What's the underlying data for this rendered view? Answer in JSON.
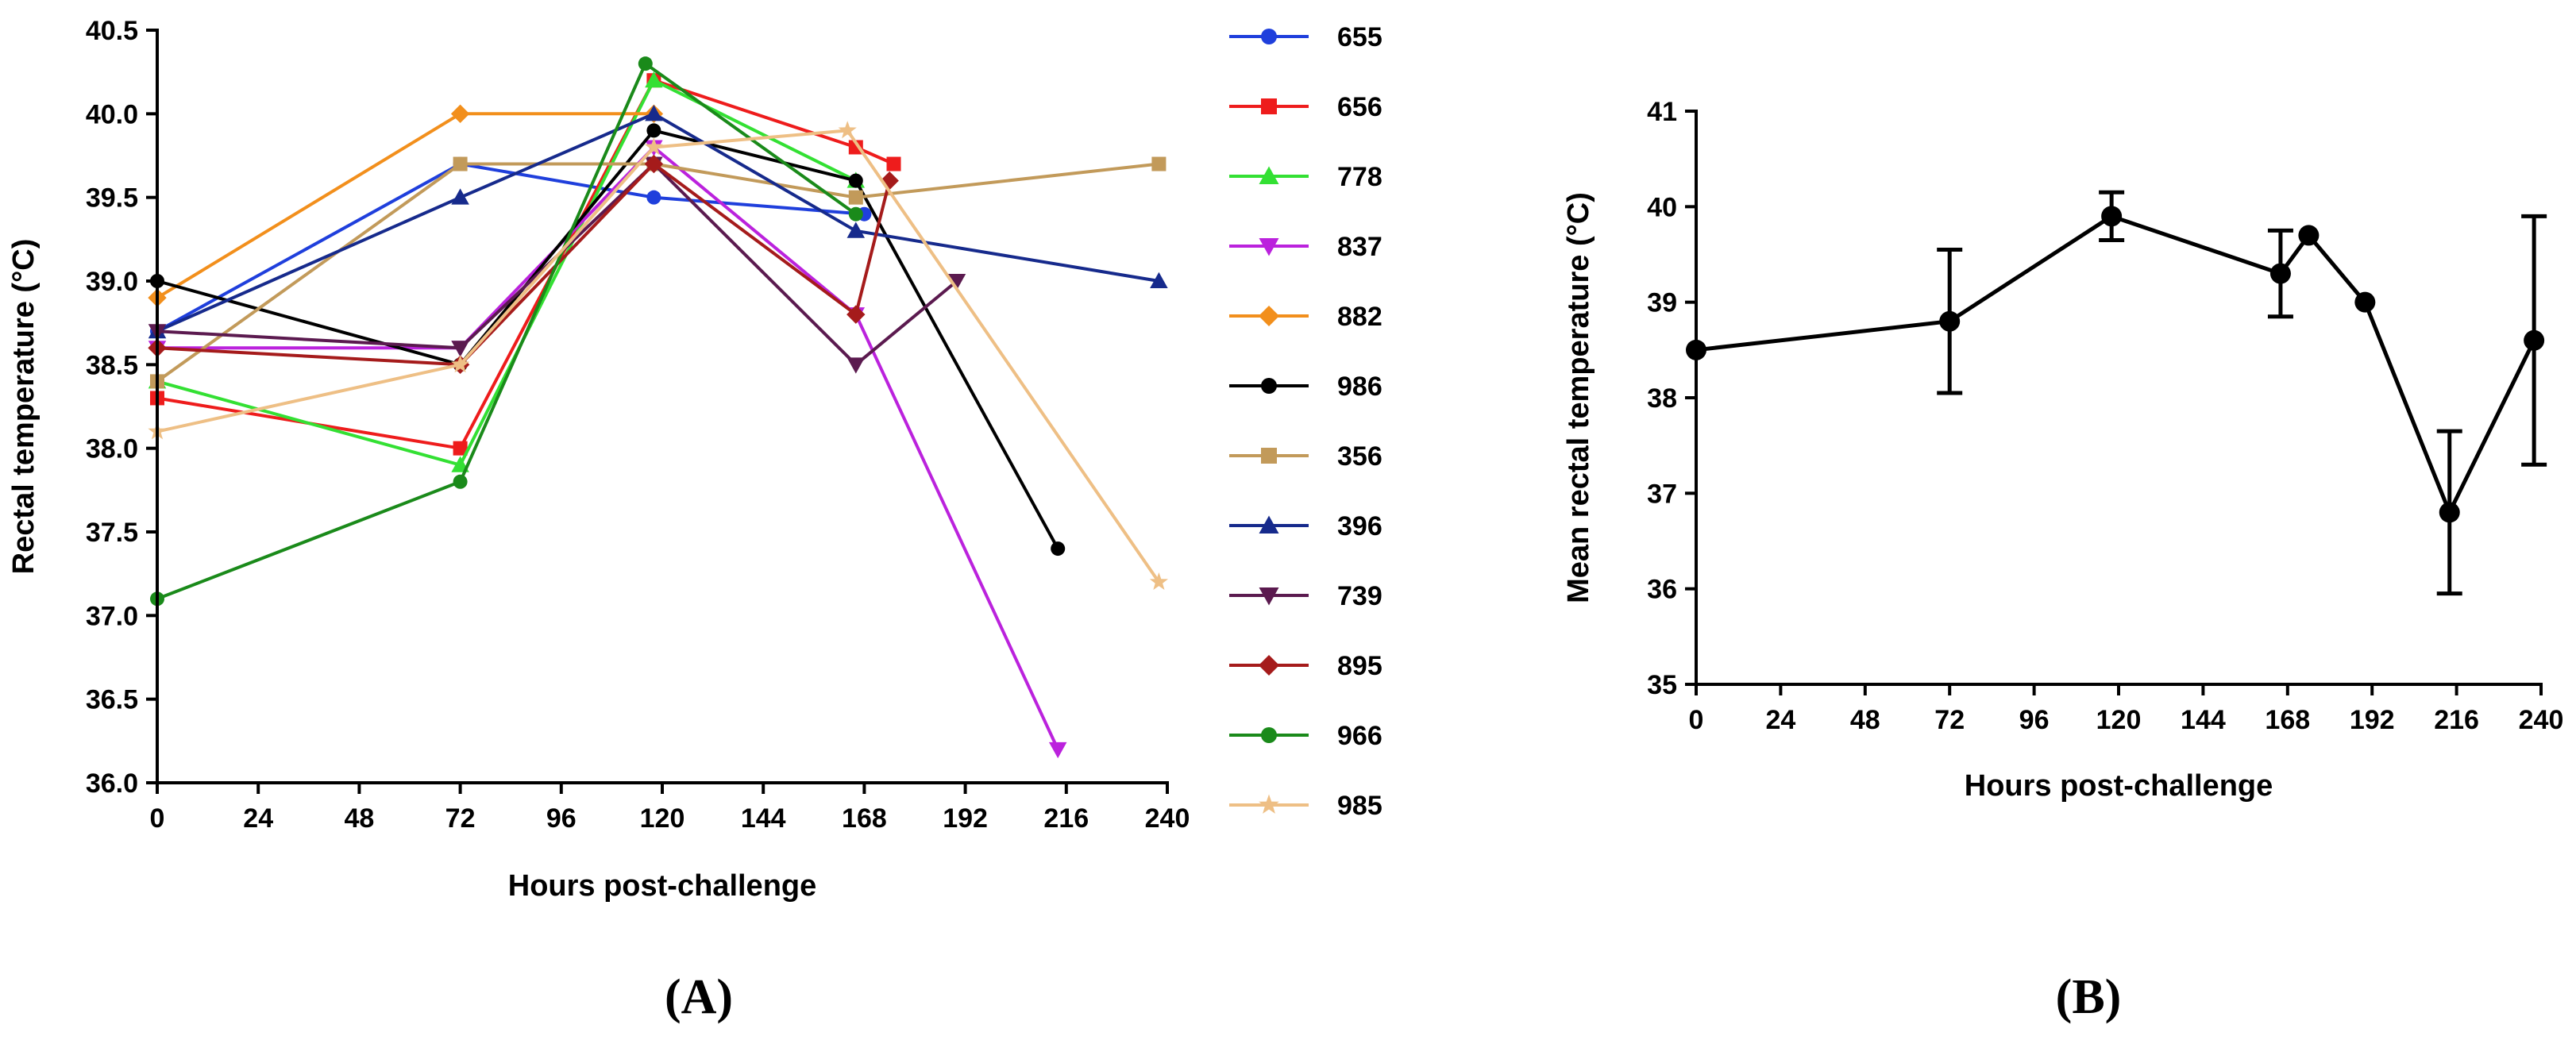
{
  "chart_data": [
    {
      "panel_label": "(A)",
      "type": "line",
      "title": "",
      "xlabel": "Hours post-challenge",
      "ylabel": "Rectal temperature (°C)",
      "xlim": [
        0,
        240
      ],
      "ylim": [
        36.0,
        40.5
      ],
      "xticks": [
        "0",
        "24",
        "48",
        "72",
        "96",
        "120",
        "144",
        "168",
        "192",
        "216",
        "240"
      ],
      "yticks": [
        "36.0",
        "36.5",
        "37.0",
        "37.5",
        "38.0",
        "38.5",
        "39.0",
        "39.5",
        "40.0",
        "40.5"
      ],
      "grid": false,
      "legend_position": "right",
      "series": [
        {
          "name": "655",
          "color": "#1f3fdc",
          "marker": "circle",
          "x": [
            0,
            72,
            118,
            168
          ],
          "y": [
            38.7,
            39.7,
            39.5,
            39.4
          ]
        },
        {
          "name": "656",
          "color": "#ee1c1c",
          "marker": "square",
          "x": [
            0,
            72,
            118,
            166,
            175
          ],
          "y": [
            38.3,
            38.0,
            40.2,
            39.8,
            39.7
          ]
        },
        {
          "name": "778",
          "color": "#33e033",
          "marker": "triangle-up",
          "x": [
            0,
            72,
            118,
            166
          ],
          "y": [
            38.4,
            37.9,
            40.2,
            39.6
          ]
        },
        {
          "name": "837",
          "color": "#bb22dd",
          "marker": "triangle-down",
          "x": [
            0,
            72,
            118,
            166,
            214
          ],
          "y": [
            38.6,
            38.6,
            39.8,
            38.8,
            36.2
          ]
        },
        {
          "name": "882",
          "color": "#f28f1c",
          "marker": "diamond",
          "x": [
            0,
            72,
            118
          ],
          "y": [
            38.9,
            40.0,
            40.0
          ]
        },
        {
          "name": "986",
          "color": "#000000",
          "marker": "circle",
          "x": [
            0,
            72,
            118,
            166,
            214
          ],
          "y": [
            39.0,
            38.5,
            39.9,
            39.6,
            37.4
          ]
        },
        {
          "name": "356",
          "color": "#c29a5a",
          "marker": "square",
          "x": [
            0,
            72,
            118,
            166,
            238
          ],
          "y": [
            38.4,
            39.7,
            39.7,
            39.5,
            39.7
          ]
        },
        {
          "name": "396",
          "color": "#162a8c",
          "marker": "triangle-up",
          "x": [
            0,
            72,
            118,
            166,
            238
          ],
          "y": [
            38.7,
            39.5,
            40.0,
            39.3,
            39.0
          ]
        },
        {
          "name": "739",
          "color": "#5b1a4f",
          "marker": "triangle-down",
          "x": [
            0,
            72,
            118,
            166,
            190
          ],
          "y": [
            38.7,
            38.6,
            39.7,
            38.5,
            39.0
          ]
        },
        {
          "name": "895",
          "color": "#a51b1b",
          "marker": "diamond",
          "x": [
            0,
            72,
            118,
            166,
            174
          ],
          "y": [
            38.6,
            38.5,
            39.7,
            38.8,
            39.6
          ]
        },
        {
          "name": "966",
          "color": "#1a8a1a",
          "marker": "circle",
          "x": [
            0,
            72,
            116,
            166
          ],
          "y": [
            37.1,
            37.8,
            40.3,
            39.4
          ]
        },
        {
          "name": "985",
          "color": "#eebf85",
          "marker": "star",
          "x": [
            0,
            72,
            118,
            164,
            238
          ],
          "y": [
            38.1,
            38.5,
            39.8,
            39.9,
            37.2
          ]
        }
      ]
    },
    {
      "panel_label": "(B)",
      "type": "line",
      "title": "",
      "xlabel": "Hours post-challenge",
      "ylabel": "Mean rectal temperature (°C)",
      "xlim": [
        0,
        240
      ],
      "ylim": [
        35,
        41
      ],
      "xticks": [
        "0",
        "24",
        "48",
        "72",
        "96",
        "120",
        "144",
        "168",
        "192",
        "216",
        "240"
      ],
      "yticks": [
        "35",
        "36",
        "37",
        "38",
        "39",
        "40",
        "41"
      ],
      "grid": false,
      "series": [
        {
          "name": "Mean",
          "color": "#000000",
          "marker": "circle",
          "x": [
            0,
            72,
            118,
            166,
            174,
            190,
            214,
            238
          ],
          "y": [
            38.5,
            38.8,
            39.9,
            39.3,
            39.7,
            39.0,
            36.8,
            38.6
          ],
          "err_low": [
            null,
            38.05,
            39.65,
            38.85,
            null,
            null,
            35.95,
            37.3
          ],
          "err_high": [
            null,
            39.55,
            40.15,
            39.75,
            null,
            null,
            37.65,
            39.9
          ]
        }
      ]
    }
  ]
}
